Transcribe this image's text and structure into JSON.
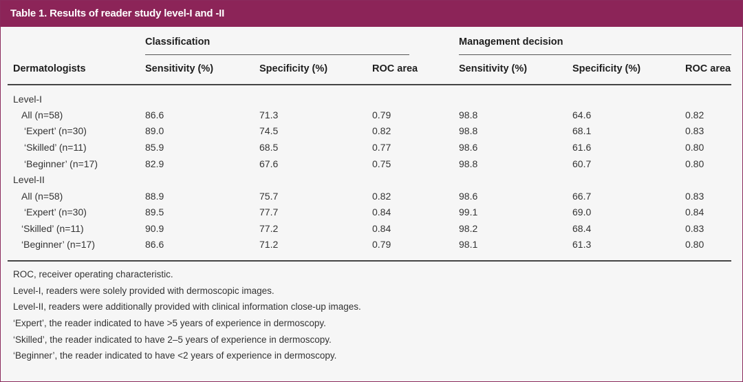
{
  "title": "Table 1. Results of reader study level-I and -II",
  "headers": {
    "row_header": "Dermatologists",
    "group_classification": "Classification",
    "group_management": "Management decision",
    "columns": [
      "Sensitivity (%)",
      "Specificity (%)",
      "ROC area",
      "Sensitivity (%)",
      "Specificity (%)",
      "ROC area"
    ]
  },
  "sections": [
    {
      "label": "Level-I",
      "rows": [
        {
          "label": "All (n=58)",
          "values": [
            "86.6",
            "71.3",
            "0.79",
            "98.8",
            "64.6",
            "0.82"
          ]
        },
        {
          "label": "‘Expert’ (n=30)",
          "values": [
            "89.0",
            "74.5",
            "0.82",
            "98.8",
            "68.1",
            "0.83"
          ]
        },
        {
          "label": "‘Skilled’ (n=11)",
          "values": [
            "85.9",
            "68.5",
            "0.77",
            "98.6",
            "61.6",
            "0.80"
          ]
        },
        {
          "label": "‘Beginner’ (n=17)",
          "values": [
            "82.9",
            "67.6",
            "0.75",
            "98.8",
            "60.7",
            "0.80"
          ]
        }
      ]
    },
    {
      "label": "Level-II",
      "rows": [
        {
          "label": "All (n=58)",
          "values": [
            "88.9",
            "75.7",
            "0.82",
            "98.6",
            "66.7",
            "0.83"
          ]
        },
        {
          "label": "‘Expert’ (n=30)",
          "values": [
            "89.5",
            "77.7",
            "0.84",
            "99.1",
            "69.0",
            "0.84"
          ]
        },
        {
          "label": "‘Skilled’ (n=11)",
          "values": [
            "90.9",
            "77.2",
            "0.84",
            "98.2",
            "68.4",
            "0.83"
          ]
        },
        {
          "label": "‘Beginner’ (n=17)",
          "values": [
            "86.6",
            "71.2",
            "0.79",
            "98.1",
            "61.3",
            "0.80"
          ]
        }
      ]
    }
  ],
  "footnotes": [
    "ROC, receiver operating characteristic.",
    "Level-I, readers were solely provided with dermoscopic images.",
    "Level-II, readers were additionally provided with clinical information close-up images.",
    "‘Expert’, the reader indicated to have >5 years of experience in dermoscopy.",
    "‘Skilled’, the reader indicated to have 2–5 years of experience in dermoscopy.",
    "‘Beginner’, the reader indicated to have <2 years of experience in dermoscopy."
  ]
}
